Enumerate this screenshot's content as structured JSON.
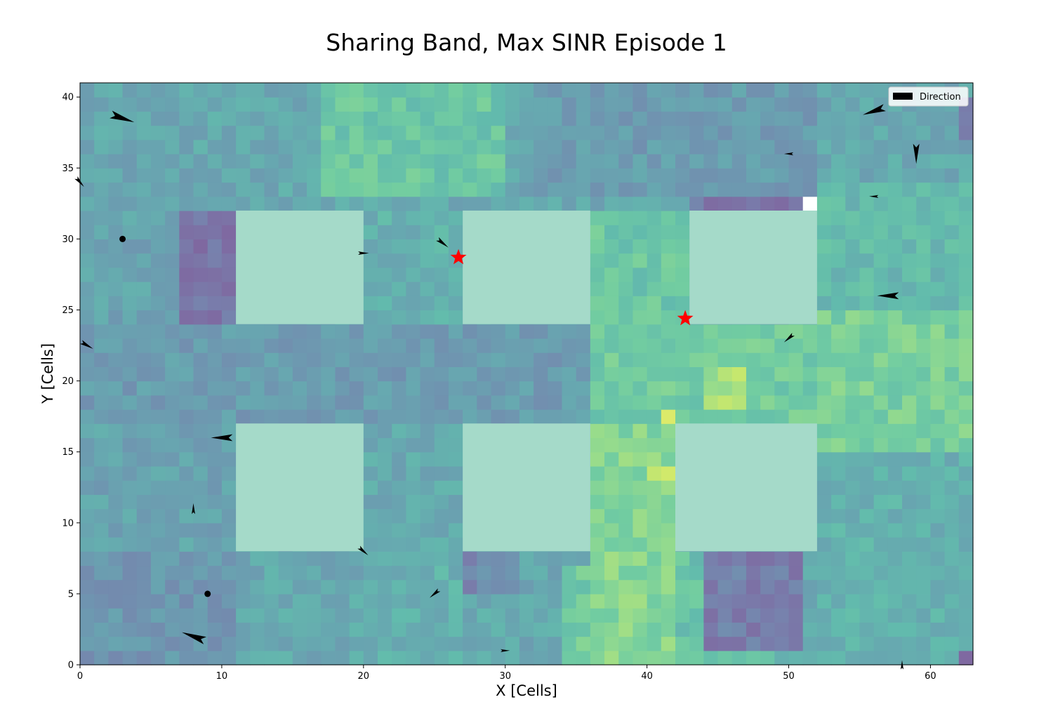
{
  "chart_data": {
    "type": "heatmap",
    "title": "Sharing Band, Max SINR Episode 1",
    "xlabel": "X [Cells]",
    "ylabel": "Y [Cells]",
    "xlim": [
      0,
      63
    ],
    "ylim": [
      0,
      41
    ],
    "xticks": [
      0,
      10,
      20,
      30,
      40,
      50,
      60
    ],
    "yticks": [
      0,
      5,
      10,
      15,
      20,
      25,
      30,
      35,
      40
    ],
    "grid": false,
    "legend": {
      "placement": "top-right",
      "entries": [
        {
          "label": "Direction",
          "color": "#000000"
        }
      ]
    },
    "colormap": "viridis",
    "building_color": "#a5dac9",
    "buildings": [
      {
        "x0": 11,
        "x1": 20,
        "y0": 24,
        "y1": 32
      },
      {
        "x0": 27,
        "x1": 36,
        "y0": 24,
        "y1": 32
      },
      {
        "x0": 43,
        "x1": 52,
        "y0": 24,
        "y1": 32
      },
      {
        "x0": 11,
        "x1": 20,
        "y0": 8,
        "y1": 17
      },
      {
        "x0": 27,
        "x1": 36,
        "y0": 8,
        "y1": 17
      },
      {
        "x0": 42,
        "x1": 52,
        "y0": 8,
        "y1": 17
      }
    ],
    "field_regions": [
      {
        "x0": 0,
        "x1": 63,
        "y0": 0,
        "y1": 41,
        "v": 0.45
      },
      {
        "x0": 0,
        "x1": 63,
        "y0": 17,
        "y1": 24,
        "v": 0.38
      },
      {
        "x0": 17,
        "x1": 30,
        "y0": 33,
        "y1": 41,
        "v": 0.62
      },
      {
        "x0": 20,
        "x1": 27,
        "y0": 24,
        "y1": 32,
        "v": 0.5
      },
      {
        "x0": 36,
        "x1": 43,
        "y0": 24,
        "y1": 32,
        "v": 0.62
      },
      {
        "x0": 36,
        "x1": 52,
        "y0": 17,
        "y1": 24,
        "v": 0.65
      },
      {
        "x0": 52,
        "x1": 63,
        "y0": 15,
        "y1": 25,
        "v": 0.68
      },
      {
        "x0": 36,
        "x1": 42,
        "y0": 0,
        "y1": 17,
        "v": 0.72
      },
      {
        "x0": 34,
        "x1": 36,
        "y0": 0,
        "y1": 7,
        "v": 0.65
      },
      {
        "x0": 42,
        "x1": 49,
        "y0": 0,
        "y1": 8,
        "v": 0.6
      },
      {
        "x0": 52,
        "x1": 63,
        "y0": 25,
        "y1": 34,
        "v": 0.55
      },
      {
        "x0": 52,
        "x1": 63,
        "y0": 0,
        "y1": 15,
        "v": 0.5
      },
      {
        "x0": 20,
        "x1": 27,
        "y0": 0,
        "y1": 8,
        "v": 0.5
      },
      {
        "x0": 0,
        "x1": 11,
        "y0": 24,
        "y1": 36,
        "v": 0.42
      },
      {
        "x0": 0,
        "x1": 11,
        "y0": 8,
        "y1": 17,
        "v": 0.42
      },
      {
        "x0": 0,
        "x1": 11,
        "y0": 0,
        "y1": 8,
        "v": 0.35
      },
      {
        "x0": 7,
        "x1": 11,
        "y0": 24,
        "y1": 32,
        "v": 0.18
      },
      {
        "x0": 43,
        "x1": 51,
        "y0": 32,
        "y1": 33,
        "v": 0.18
      },
      {
        "x0": 44,
        "x1": 51,
        "y0": 1,
        "y1": 8,
        "v": 0.22
      },
      {
        "x0": 27,
        "x1": 31,
        "y0": 5,
        "y1": 8,
        "v": 0.28
      },
      {
        "x0": 32,
        "x1": 52,
        "y0": 33,
        "y1": 41,
        "v": 0.38
      },
      {
        "x0": 44,
        "x1": 47,
        "y0": 18,
        "y1": 21,
        "v": 0.82
      },
      {
        "x0": 41,
        "x1": 42,
        "y0": 17,
        "y1": 18,
        "v": 0.95
      },
      {
        "x0": 40,
        "x1": 42,
        "y0": 13,
        "y1": 14,
        "v": 0.9
      },
      {
        "x0": 62,
        "x1": 63,
        "y0": 37,
        "y1": 40,
        "v": 0.15
      },
      {
        "x0": 62,
        "x1": 63,
        "y0": 0,
        "y1": 1,
        "v": 0.12
      }
    ],
    "blank_cells": [
      {
        "x": 51,
        "y": 32
      }
    ],
    "targets": [
      {
        "x": 26.7,
        "y": 28.7
      },
      {
        "x": 42.7,
        "y": 24.4
      }
    ],
    "agents": [
      {
        "x": 3,
        "y": 38.5,
        "dx": 1.5,
        "dy": -0.5,
        "size": 1.6
      },
      {
        "x": 0,
        "y": 34,
        "dx": 0.6,
        "dy": -0.7,
        "size": 0.8
      },
      {
        "x": 3,
        "y": 30,
        "dx": 0,
        "dy": 0,
        "size": 0.5
      },
      {
        "x": 0.5,
        "y": 22.5,
        "dx": 0.7,
        "dy": -0.4,
        "size": 0.9
      },
      {
        "x": 10,
        "y": 16,
        "dx": -1.4,
        "dy": 0,
        "size": 1.4
      },
      {
        "x": 8,
        "y": 11,
        "dx": 0,
        "dy": 0.6,
        "size": 0.7
      },
      {
        "x": 9,
        "y": 5,
        "dx": 0,
        "dy": 0,
        "size": 0.5
      },
      {
        "x": 8,
        "y": 2,
        "dx": -1.4,
        "dy": 0.5,
        "size": 1.6
      },
      {
        "x": 20,
        "y": 29,
        "dx": 0.7,
        "dy": 0,
        "size": 0.7
      },
      {
        "x": 25.6,
        "y": 29.7,
        "dx": 0.9,
        "dy": -0.7,
        "size": 0.9
      },
      {
        "x": 20,
        "y": 8,
        "dx": 0.7,
        "dy": -0.6,
        "size": 0.8
      },
      {
        "x": 25,
        "y": 5,
        "dx": -0.6,
        "dy": -0.5,
        "size": 0.8
      },
      {
        "x": 30,
        "y": 1,
        "dx": 0.7,
        "dy": 0,
        "size": 0.6
      },
      {
        "x": 56,
        "y": 39,
        "dx": -1.5,
        "dy": -0.5,
        "size": 1.5
      },
      {
        "x": 50,
        "y": 36,
        "dx": -0.7,
        "dy": 0,
        "size": 0.6
      },
      {
        "x": 56,
        "y": 33,
        "dx": -0.7,
        "dy": 0,
        "size": 0.6
      },
      {
        "x": 59,
        "y": 36,
        "dx": 0,
        "dy": -1.3,
        "size": 1.3
      },
      {
        "x": 57,
        "y": 26,
        "dx": -1.4,
        "dy": 0,
        "size": 1.4
      },
      {
        "x": 50,
        "y": 23,
        "dx": -0.7,
        "dy": -0.6,
        "size": 0.8
      },
      {
        "x": 58,
        "y": 0,
        "dx": 0,
        "dy": 0.6,
        "size": 0.6
      }
    ]
  }
}
